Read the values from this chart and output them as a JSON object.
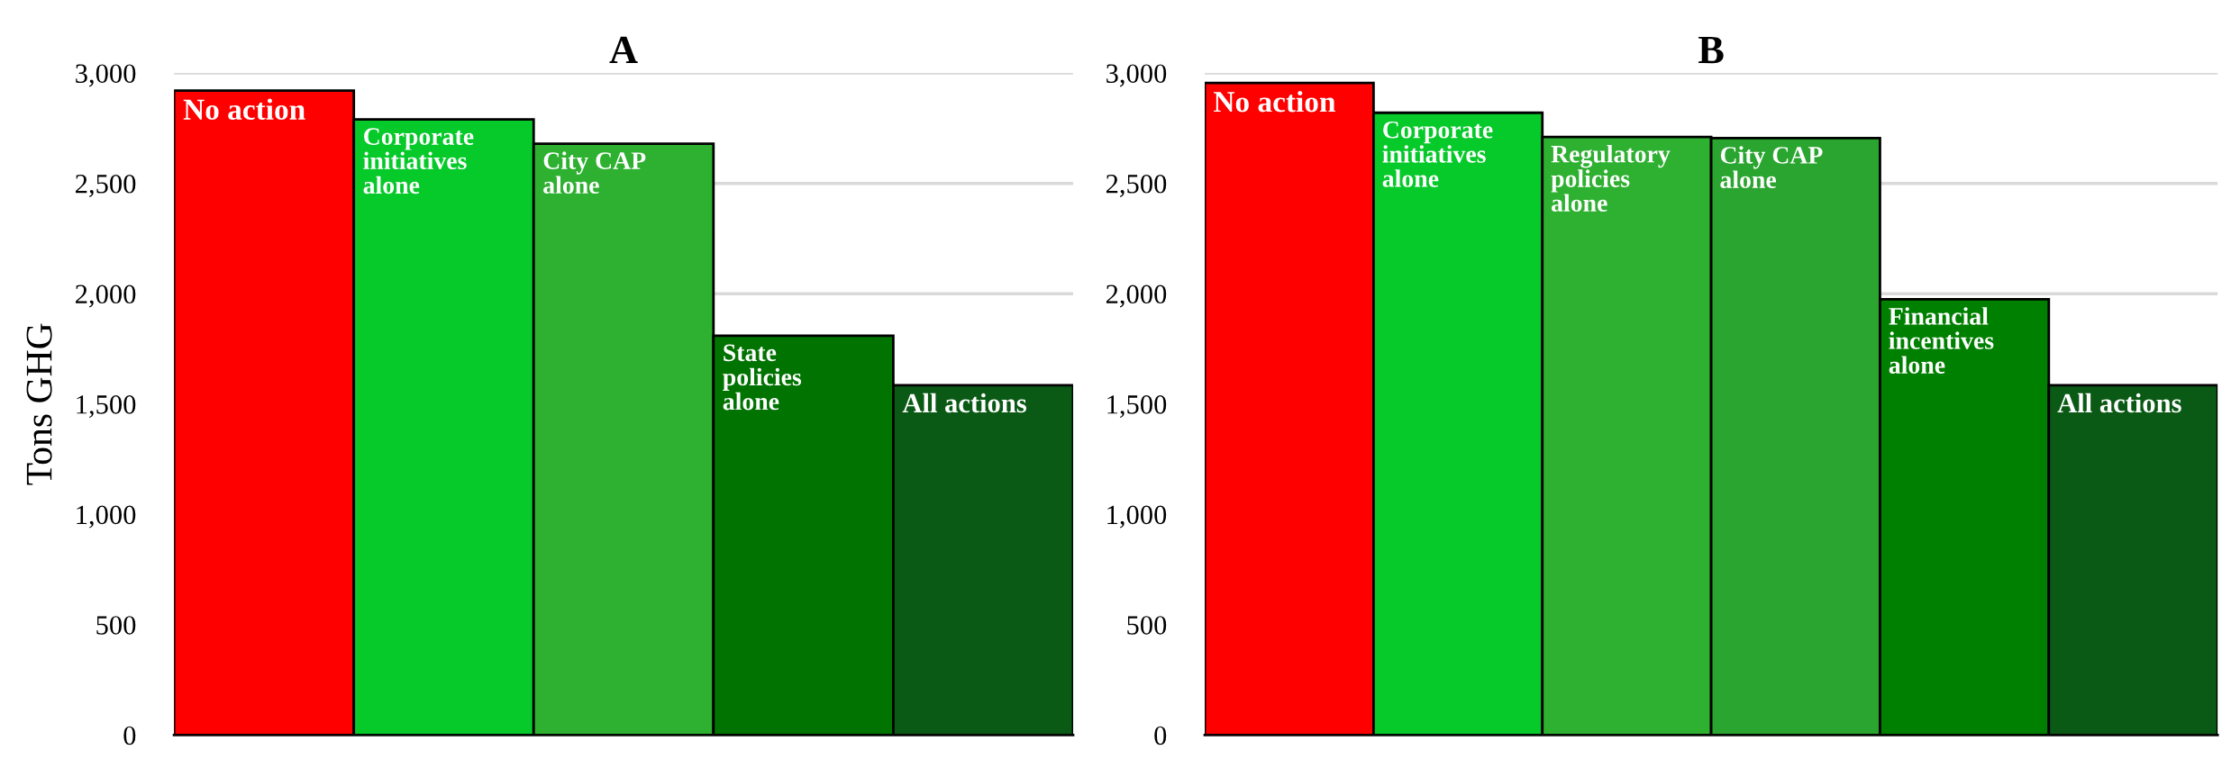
{
  "chart_data": [
    {
      "type": "bar",
      "title": "A",
      "ylabel": "Tons GHG",
      "categories": [
        "No action",
        "Corporate initiatives alone",
        "City CAP alone",
        "State policies alone",
        "All actions"
      ],
      "values": [
        2920,
        2790,
        2680,
        1810,
        1585
      ],
      "colors": [
        "#ff0000",
        "#06c92a",
        "#2eb030",
        "#007300",
        "#0a5a15"
      ],
      "ylim": [
        0,
        3000
      ],
      "yticks": [
        0,
        500,
        {
          "value": 1000,
          "label": "1,000"
        },
        {
          "value": 1500,
          "label": "1,500"
        },
        {
          "value": 2000,
          "label": "2,000"
        },
        {
          "value": 2500,
          "label": "2,500"
        },
        {
          "value": 3000,
          "label": "3,000"
        }
      ],
      "grid": "y"
    },
    {
      "type": "bar",
      "title": "B",
      "categories": [
        "No action",
        "Corporate initiatives alone",
        "Regulatory policies alone",
        "City CAP alone",
        "Financial incentives alone",
        "All actions"
      ],
      "values": [
        2955,
        2820,
        2710,
        2705,
        1975,
        1585
      ],
      "colors": [
        "#ff0000",
        "#06c92a",
        "#2eb030",
        "#2aa52f",
        "#008000",
        "#0a5a15"
      ],
      "ylim": [
        0,
        3000
      ],
      "yticks": [
        0,
        500,
        {
          "value": 1000,
          "label": "1,000"
        },
        {
          "value": 1500,
          "label": "1,500"
        },
        {
          "value": 2000,
          "label": "2,000"
        },
        {
          "value": 2500,
          "label": "2,500"
        },
        {
          "value": 3000,
          "label": "3,000"
        }
      ],
      "grid": "y"
    }
  ]
}
